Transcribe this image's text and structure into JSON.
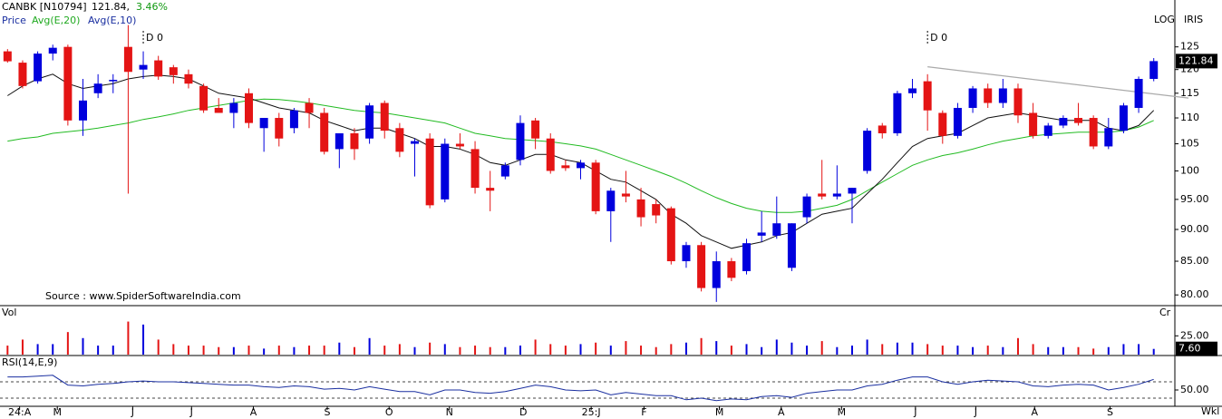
{
  "chart_data": {
    "type": "candlestick",
    "symbol": "CANBK [N10794]",
    "last_price": "121.84,",
    "change": "3.46%",
    "legend": [
      "Price",
      "Avg(E,20)",
      "Avg(E,10)"
    ],
    "scale_label": "LOG",
    "source_label": "IRIS",
    "source": "Source : www.SpiderSoftwareIndia.com",
    "markers": [
      {
        "index": 9,
        "label": "D 0"
      },
      {
        "index": 61,
        "label": "D 0"
      }
    ],
    "log_scale": true,
    "up_color": "#0000dd",
    "down_color": "#e41414",
    "ylim": [
      78.6,
      136
    ],
    "yticks": [
      125,
      120,
      115,
      110,
      105,
      100,
      {
        "value": 95,
        "label": "95.00"
      },
      {
        "value": 90,
        "label": "90.00"
      },
      {
        "value": 85,
        "label": "85.00"
      },
      {
        "value": 80,
        "label": "80.00"
      }
    ],
    "xticks": [
      {
        "value": 0.8,
        "label": "24:A"
      },
      {
        "value": 3.3,
        "label": "M"
      },
      {
        "value": 8.3,
        "label": "J"
      },
      {
        "value": 12.2,
        "label": "J"
      },
      {
        "value": 16.3,
        "label": "A"
      },
      {
        "value": 21.2,
        "label": "S"
      },
      {
        "value": 25.3,
        "label": "O"
      },
      {
        "value": 29.3,
        "label": "N"
      },
      {
        "value": 34.2,
        "label": "D"
      },
      {
        "value": 38.7,
        "label": "25:J"
      },
      {
        "value": 42.2,
        "label": "F"
      },
      {
        "value": 47.2,
        "label": "M"
      },
      {
        "value": 51.3,
        "label": "A"
      },
      {
        "value": 55.3,
        "label": "M"
      },
      {
        "value": 60.2,
        "label": "J"
      },
      {
        "value": 64.2,
        "label": "J"
      },
      {
        "value": 68.1,
        "label": "A"
      },
      {
        "value": 73.1,
        "label": "S"
      }
    ],
    "xlim": [
      -0.5,
      77.4
    ],
    "period_label": "Wkl",
    "candles": {
      "open": [
        124,
        121.5,
        117.5,
        123.5,
        125,
        109.5,
        115,
        117.5,
        125,
        120,
        122,
        120.5,
        119,
        116.5,
        112,
        111,
        115,
        108,
        110,
        108,
        113,
        111,
        104,
        107,
        106,
        113,
        108,
        105,
        106,
        95,
        105,
        104,
        97,
        99,
        102,
        109.5,
        106,
        101,
        100.5,
        101.5,
        93,
        96,
        95,
        94.2,
        93.5,
        85,
        87.5,
        81,
        85,
        83.5,
        89,
        89,
        84,
        92,
        96,
        95.5,
        96,
        100,
        108.5,
        107,
        115,
        117.5,
        111,
        106.5,
        112,
        116,
        113,
        116,
        111,
        106.5,
        108.5,
        110,
        110,
        104.5,
        107.5,
        112,
        118
      ],
      "high": [
        124.5,
        122,
        124,
        125.5,
        125.5,
        118,
        119,
        119,
        130,
        124,
        123,
        121,
        120,
        117,
        114,
        114,
        116,
        110,
        111,
        112,
        114,
        112,
        107,
        108,
        113,
        113.5,
        109,
        106,
        107,
        106,
        107,
        105.5,
        100,
        101.5,
        110.5,
        110,
        107,
        102,
        102,
        102,
        97,
        100,
        97,
        95,
        93.8,
        88,
        88,
        86.5,
        85.5,
        88.5,
        93,
        95.5,
        91,
        96,
        102,
        101,
        97,
        108,
        109,
        115.5,
        118,
        119,
        111.5,
        113,
        116.5,
        117,
        118,
        117,
        113,
        109,
        110.5,
        113,
        110.5,
        110,
        113,
        118.5,
        122.5
      ],
      "low": [
        121.5,
        116,
        117,
        122,
        108.5,
        106.5,
        114,
        115,
        96,
        118,
        117.8,
        117,
        116,
        111,
        111,
        108,
        108,
        103.5,
        104.5,
        107,
        108,
        103,
        100.5,
        102,
        105,
        106,
        102.5,
        99,
        93.5,
        94.5,
        104,
        96,
        93,
        98.5,
        101,
        104,
        99.5,
        100,
        98.5,
        92.5,
        88,
        94.5,
        90.5,
        91,
        84.5,
        84,
        80.5,
        79,
        82,
        83,
        88,
        88.5,
        83.5,
        91,
        95,
        95,
        91,
        99.5,
        106,
        106.5,
        114,
        107.5,
        105,
        106,
        111,
        112,
        112,
        109,
        106,
        106,
        108,
        108.5,
        104,
        104,
        107,
        111,
        117.5
      ],
      "close": [
        121.8,
        116.5,
        123.5,
        124.8,
        109.5,
        113.5,
        117,
        117.8,
        119.5,
        121,
        118.5,
        118.8,
        117,
        111.5,
        111,
        113,
        109,
        110,
        106,
        111.5,
        111,
        103.5,
        107,
        104,
        112.5,
        107.5,
        103.5,
        105.5,
        94,
        105,
        104.5,
        97,
        96.5,
        101,
        109,
        106,
        100,
        100.5,
        101.5,
        93,
        96.5,
        95.5,
        92,
        92.3,
        85,
        87.5,
        81,
        85,
        82.5,
        87.8,
        89.5,
        91,
        91,
        95.5,
        95.5,
        96,
        97,
        107.5,
        107,
        115,
        116,
        111.5,
        106.5,
        112,
        116,
        113,
        116,
        110.5,
        106.5,
        108.5,
        110,
        109,
        104.5,
        108,
        112.5,
        118,
        121.84
      ]
    },
    "series": [
      {
        "name": "Avg(E,20)",
        "color": "#22bb22",
        "values": [
          105.5,
          106,
          106.3,
          107,
          107.3,
          107.6,
          108,
          108.5,
          109,
          109.7,
          110.2,
          110.8,
          111.5,
          112,
          112.5,
          113,
          113.5,
          113.8,
          113.7,
          113.4,
          113,
          112.5,
          112,
          111.5,
          111.2,
          111,
          110.5,
          110,
          109.5,
          109,
          108,
          107,
          106.5,
          106,
          105.8,
          105.6,
          105.4,
          105,
          104.6,
          104,
          103,
          102,
          101,
          100,
          99,
          97.8,
          96.5,
          95.3,
          94.3,
          93.5,
          93,
          92.8,
          92.8,
          93,
          93.5,
          94,
          95,
          96.5,
          98,
          99.5,
          101,
          102,
          102.8,
          103.3,
          104,
          104.8,
          105.5,
          106,
          106.5,
          106.8,
          107,
          107.2,
          107.2,
          107.2,
          107.5,
          108.2,
          109.5
        ]
      },
      {
        "name": "Avg(E,10)",
        "color": "#111111",
        "values": [
          114.5,
          116.5,
          118,
          119,
          117,
          116,
          116.5,
          117,
          118,
          118.5,
          118.8,
          118.5,
          118,
          116.5,
          115,
          114.5,
          114,
          113,
          112,
          111.5,
          111,
          109.5,
          108.5,
          107.5,
          108,
          108,
          107,
          106,
          104.5,
          104.5,
          104,
          103,
          101.5,
          101,
          102,
          103,
          103,
          102,
          101.5,
          100,
          98.5,
          98,
          96.5,
          95,
          92.5,
          91,
          89,
          88,
          87,
          87.5,
          88,
          89,
          89.5,
          91,
          92.5,
          93,
          93.5,
          96,
          98.5,
          101.5,
          104.5,
          106,
          106.5,
          107,
          108.5,
          110,
          110.5,
          111,
          110.5,
          110,
          109.5,
          109.5,
          109.5,
          108,
          107.5,
          108.5,
          111.5
        ]
      }
    ],
    "trendline": {
      "color": "#aaaaaa",
      "x": [
        61,
        78.3
      ],
      "values": [
        120.6,
        114
      ]
    },
    "volume": {
      "label": "Vol",
      "unit": "Cr",
      "ylim": [
        0,
        64
      ],
      "yticks": [
        {
          "value": 25,
          "label": "25.00"
        }
      ],
      "values": [
        12,
        20,
        14,
        14,
        30,
        22,
        12,
        12,
        44,
        40,
        20,
        14,
        12,
        12,
        10,
        10,
        12,
        8,
        12,
        10,
        12,
        12,
        16,
        10,
        22,
        12,
        14,
        10,
        16,
        14,
        10,
        12,
        10,
        10,
        12,
        20,
        14,
        12,
        14,
        16,
        12,
        18,
        12,
        10,
        14,
        16,
        22,
        18,
        12,
        14,
        10,
        20,
        16,
        12,
        18,
        10,
        12,
        20,
        14,
        16,
        16,
        14,
        12,
        12,
        10,
        12,
        10,
        22,
        14,
        10,
        10,
        10,
        8,
        10,
        14,
        14,
        7.6
      ],
      "last_label": "7.60"
    },
    "rsi": {
      "label": "RSI(14,E,9)",
      "color": "#1a2fa0",
      "ylim": [
        30,
        91.1
      ],
      "yticks": [
        {
          "value": 50,
          "label": "50.00"
        }
      ],
      "levels": [
        40,
        60
      ],
      "values": [
        66,
        66,
        67,
        68,
        56,
        55,
        57,
        58,
        60,
        61,
        60,
        60,
        59,
        58,
        57,
        56,
        56,
        54,
        53,
        55,
        54,
        51,
        52,
        50,
        54,
        51,
        48,
        48,
        44,
        50,
        50,
        47,
        46,
        48,
        52,
        56,
        54,
        50,
        49,
        50,
        44,
        47,
        45,
        43,
        43,
        38,
        40,
        37,
        39,
        38,
        42,
        43,
        41,
        46,
        48,
        50,
        50,
        55,
        57,
        62,
        66,
        66,
        60,
        57,
        60,
        62,
        61,
        60,
        55,
        54,
        56,
        57,
        56,
        50,
        53,
        57,
        63
      ]
    }
  }
}
